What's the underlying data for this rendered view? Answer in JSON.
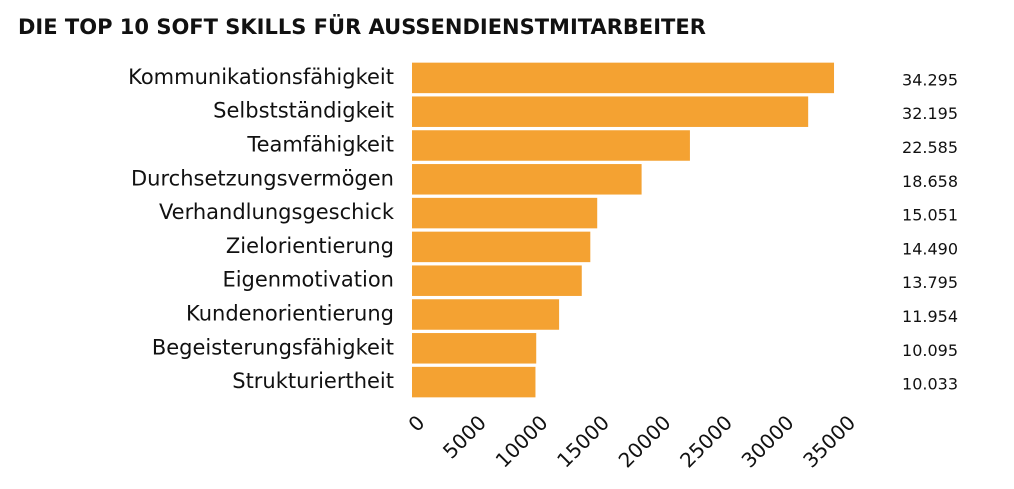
{
  "chart_data": {
    "type": "bar",
    "orientation": "horizontal",
    "title": "DIE TOP 10 SOFT SKILLS FÜR AUSSENDIENSTMITARBEITER",
    "categories": [
      "Kommunikationsfähigkeit",
      "Selbstständigkeit",
      "Teamfähigkeit",
      "Durchsetzungsvermögen",
      "Verhandlungsgeschick",
      "Zielorientierung",
      "Eigenmotivation",
      "Kundenorientierung",
      "Begeisterungsfähigkeit",
      "Strukturiertheit"
    ],
    "values": [
      34295,
      32195,
      22585,
      18658,
      15051,
      14490,
      13795,
      11954,
      10095,
      10033
    ],
    "value_labels": [
      "34.295",
      "32.195",
      "22.585",
      "18.658",
      "15.051",
      "14.490",
      "13.795",
      "11.954",
      "10.095",
      "10.033"
    ],
    "color": "#f4a232",
    "xlim": [
      0,
      35000
    ],
    "xticks": [
      0,
      5000,
      10000,
      15000,
      20000,
      25000,
      30000,
      35000
    ],
    "grid": false
  }
}
